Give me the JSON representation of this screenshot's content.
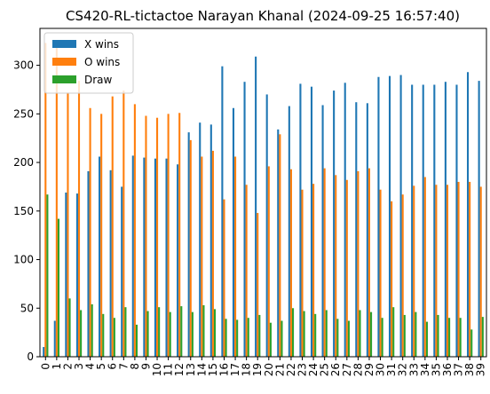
{
  "chart_data": {
    "type": "bar",
    "title": "CS420-RL-tictactoe Narayan Khanal (2024-09-25 16:57:40)",
    "xlabel": "",
    "ylabel": "",
    "ylim": [
      0,
      338
    ],
    "yticks": [
      0,
      50,
      100,
      150,
      200,
      250,
      300
    ],
    "grid": false,
    "legend_position": "upper-left",
    "categories": [
      "0",
      "1",
      "2",
      "3",
      "4",
      "5",
      "6",
      "7",
      "8",
      "9",
      "10",
      "11",
      "12",
      "13",
      "14",
      "15",
      "16",
      "17",
      "18",
      "19",
      "20",
      "21",
      "22",
      "23",
      "24",
      "25",
      "26",
      "27",
      "28",
      "29",
      "30",
      "31",
      "32",
      "33",
      "34",
      "35",
      "36",
      "37",
      "38",
      "39"
    ],
    "series": [
      {
        "name": "X wins",
        "color": "#1f77b4",
        "values": [
          10,
          37,
          169,
          168,
          191,
          206,
          192,
          175,
          207,
          205,
          204,
          204,
          198,
          231,
          241,
          239,
          299,
          256,
          283,
          309,
          270,
          234,
          258,
          281,
          278,
          259,
          274,
          282,
          262,
          261,
          288,
          289,
          290,
          280,
          280,
          280,
          283,
          280,
          293,
          284
        ]
      },
      {
        "name": "O wins",
        "color": "#ff7f0e",
        "values": [
          323,
          321,
          272,
          284,
          256,
          250,
          268,
          274,
          260,
          248,
          246,
          250,
          251,
          223,
          206,
          212,
          162,
          206,
          177,
          148,
          196,
          229,
          193,
          172,
          178,
          194,
          187,
          182,
          191,
          194,
          172,
          160,
          167,
          176,
          185,
          177,
          177,
          180,
          180,
          175
        ]
      },
      {
        "name": "Draw",
        "color": "#2ca02c",
        "values": [
          167,
          142,
          60,
          48,
          54,
          44,
          40,
          51,
          33,
          47,
          51,
          46,
          52,
          46,
          53,
          49,
          39,
          38,
          40,
          43,
          35,
          37,
          50,
          47,
          44,
          48,
          39,
          37,
          48,
          46,
          40,
          51,
          43,
          46,
          36,
          43,
          40,
          40,
          28,
          41
        ]
      }
    ]
  }
}
